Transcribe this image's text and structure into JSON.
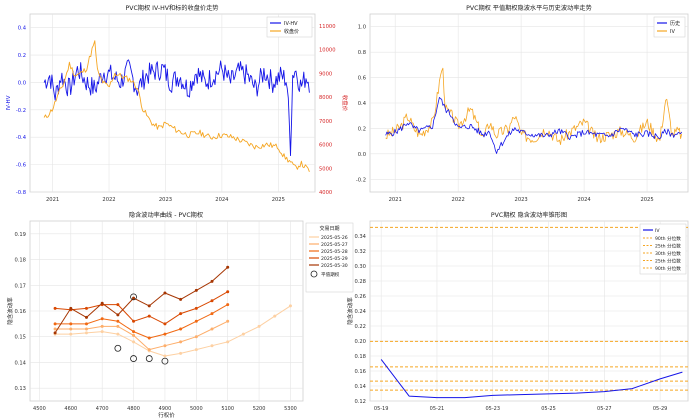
{
  "chart_data": [
    {
      "type": "line",
      "title": "PVC期权 IV-HV和标的收盘价走势",
      "xlabel": "",
      "ylabel": "IV-HV",
      "y2label": "收盘价",
      "x_ticks": [
        "2021",
        "2022",
        "2023",
        "2024",
        "2025"
      ],
      "y_ticks": [
        "0.4",
        "0.2",
        "0.0",
        "-0.2",
        "-0.4",
        "-0.6",
        "-0.8"
      ],
      "y2_ticks": [
        "11000",
        "10000",
        "9000",
        "8000",
        "7000",
        "6000",
        "5000",
        "4000"
      ],
      "ylim": [
        -0.8,
        0.5
      ],
      "y2lim": [
        4000,
        11500
      ],
      "xlim": [
        2020.6,
        2025.65
      ],
      "legend": "top-right",
      "series": [
        {
          "name": "IV-HV",
          "color": "#1515e8",
          "axis": "left",
          "x": [
            2020.85,
            2020.95,
            2021.05,
            2021.15,
            2021.3,
            2021.45,
            2021.6,
            2021.75,
            2021.9,
            2022.05,
            2022.2,
            2022.35,
            2022.5,
            2022.65,
            2022.8,
            2022.95,
            2023.1,
            2023.25,
            2023.4,
            2023.55,
            2023.7,
            2023.85,
            2024.0,
            2024.15,
            2024.3,
            2024.45,
            2024.6,
            2024.75,
            2024.9,
            2025.05,
            2025.15,
            2025.22,
            2025.25,
            2025.3,
            2025.4,
            2025.5,
            2025.55
          ],
          "values": [
            0.0,
            0.05,
            -0.1,
            0.05,
            -0.05,
            0.1,
            0.0,
            -0.05,
            0.08,
            0.05,
            0.0,
            0.1,
            -0.05,
            0.05,
            0.08,
            0.1,
            0.0,
            0.05,
            -0.05,
            0.08,
            0.0,
            0.05,
            0.1,
            0.0,
            0.08,
            0.05,
            -0.05,
            0.08,
            0.0,
            0.05,
            0.02,
            -0.5,
            0.05,
            0.1,
            -0.03,
            0.05,
            0.0
          ]
        },
        {
          "name": "收盘价",
          "color": "#f5a623",
          "axis": "right",
          "x": [
            2020.85,
            2020.9,
            2021.0,
            2021.1,
            2021.2,
            2021.3,
            2021.4,
            2021.5,
            2021.6,
            2021.7,
            2021.75,
            2021.8,
            2021.9,
            2022.0,
            2022.1,
            2022.2,
            2022.3,
            2022.4,
            2022.5,
            2022.6,
            2022.7,
            2022.8,
            2022.9,
            2023.0,
            2023.2,
            2023.4,
            2023.6,
            2023.8,
            2024.0,
            2024.2,
            2024.4,
            2024.6,
            2024.8,
            2025.0,
            2025.1,
            2025.2,
            2025.3,
            2025.4,
            2025.5,
            2025.55
          ],
          "values": [
            7100,
            7200,
            7500,
            8100,
            8600,
            9400,
            8900,
            9000,
            9200,
            10000,
            10300,
            9000,
            8600,
            8400,
            9000,
            8900,
            8800,
            8700,
            8400,
            7500,
            7100,
            6800,
            6700,
            6900,
            6600,
            6400,
            6500,
            6300,
            6400,
            6300,
            6100,
            5900,
            6000,
            5900,
            5500,
            5300,
            5000,
            5200,
            5000,
            4900
          ]
        }
      ]
    },
    {
      "type": "line",
      "title": "PVC期权 平值期权隐波水平与历史波动率走势",
      "xlabel": "",
      "ylabel": "",
      "x_ticks": [
        "2021",
        "2022",
        "2023",
        "2024",
        "2025"
      ],
      "y_ticks": [
        "1.0",
        "0.8",
        "0.6",
        "0.4",
        "0.2",
        "0.0",
        "-0.2"
      ],
      "ylim": [
        -0.3,
        1.1
      ],
      "xlim": [
        2020.6,
        2025.65
      ],
      "legend": "top-right",
      "series": [
        {
          "name": "历史",
          "color": "#1515e8",
          "x": [
            2020.85,
            2021.0,
            2021.1,
            2021.2,
            2021.3,
            2021.4,
            2021.5,
            2021.6,
            2021.7,
            2021.8,
            2021.9,
            2022.0,
            2022.2,
            2022.4,
            2022.5,
            2022.6,
            2022.8,
            2022.9,
            2023.0,
            2023.2,
            2023.4,
            2023.6,
            2023.8,
            2024.0,
            2024.2,
            2024.4,
            2024.6,
            2024.8,
            2025.0,
            2025.2,
            2025.3,
            2025.4,
            2025.5,
            2025.55
          ],
          "values": [
            0.15,
            0.17,
            0.2,
            0.25,
            0.2,
            0.18,
            0.2,
            0.22,
            0.45,
            0.35,
            0.3,
            0.2,
            0.22,
            0.15,
            0.18,
            0.02,
            0.15,
            0.2,
            0.17,
            0.15,
            0.14,
            0.18,
            0.13,
            0.17,
            0.15,
            0.14,
            0.2,
            0.15,
            0.16,
            0.13,
            0.18,
            0.15,
            0.16,
            0.15
          ]
        },
        {
          "name": "IV",
          "color": "#f5a623",
          "x": [
            2020.85,
            2021.0,
            2021.1,
            2021.2,
            2021.3,
            2021.4,
            2021.5,
            2021.6,
            2021.7,
            2021.75,
            2021.8,
            2021.9,
            2022.0,
            2022.2,
            2022.4,
            2022.5,
            2022.6,
            2022.8,
            2022.9,
            2023.0,
            2023.2,
            2023.4,
            2023.6,
            2023.8,
            2024.0,
            2024.2,
            2024.4,
            2024.6,
            2024.8,
            2025.0,
            2025.2,
            2025.3,
            2025.4,
            2025.5,
            2025.55
          ],
          "values": [
            0.14,
            0.18,
            0.22,
            0.3,
            0.2,
            0.15,
            0.2,
            0.25,
            0.55,
            0.7,
            0.35,
            0.3,
            0.22,
            0.35,
            0.12,
            0.25,
            0.15,
            0.2,
            0.3,
            0.15,
            0.12,
            0.2,
            0.1,
            0.18,
            0.25,
            0.12,
            0.15,
            0.18,
            0.13,
            0.25,
            0.1,
            0.45,
            0.15,
            0.18,
            0.14
          ]
        }
      ]
    },
    {
      "type": "line",
      "title": "隐含波动率曲线 - PVC期权",
      "xlabel": "行权价",
      "ylabel": "隐含波动率",
      "x_ticks": [
        "4500",
        "4600",
        "4700",
        "4800",
        "4900",
        "5000",
        "5100",
        "5200",
        "5300"
      ],
      "y_ticks": [
        "0.19",
        "0.18",
        "0.17",
        "0.16",
        "0.15",
        "0.14",
        "0.13"
      ],
      "xlim": [
        4470,
        5340
      ],
      "ylim": [
        0.125,
        0.195
      ],
      "legend_title": "交易日期",
      "legend": "right",
      "series": [
        {
          "name": "2025-05-26",
          "color": "#fdd0a2",
          "x": [
            4550,
            4600,
            4650,
            4700,
            4750,
            4800,
            4850,
            4900,
            4950,
            5000,
            5050,
            5100,
            5150,
            5200,
            5250,
            5300
          ],
          "values": [
            0.151,
            0.151,
            0.1515,
            0.152,
            0.151,
            0.148,
            0.1445,
            0.1425,
            0.1435,
            0.145,
            0.1465,
            0.148,
            0.151,
            0.154,
            0.158,
            0.162
          ]
        },
        {
          "name": "2025-05-27",
          "color": "#fdae6b",
          "x": [
            4550,
            4600,
            4650,
            4700,
            4750,
            4800,
            4850,
            4900,
            4950,
            5000,
            5050,
            5100
          ],
          "values": [
            0.153,
            0.153,
            0.153,
            0.154,
            0.154,
            0.1505,
            0.145,
            0.1465,
            0.148,
            0.15,
            0.153,
            0.156
          ]
        },
        {
          "name": "2025-05-28",
          "color": "#f16913",
          "x": [
            4550,
            4600,
            4650,
            4700,
            4750,
            4800,
            4850,
            4900,
            4950,
            5000,
            5050,
            5100
          ],
          "values": [
            0.155,
            0.155,
            0.155,
            0.157,
            0.156,
            0.152,
            0.1495,
            0.151,
            0.153,
            0.156,
            0.159,
            0.1625
          ]
        },
        {
          "name": "2025-05-29",
          "color": "#d94801",
          "x": [
            4550,
            4600,
            4650,
            4700,
            4750,
            4800,
            4850,
            4900,
            4950,
            5000,
            5050,
            5100
          ],
          "values": [
            0.161,
            0.1605,
            0.161,
            0.1625,
            0.1625,
            0.156,
            0.158,
            0.155,
            0.159,
            0.161,
            0.164,
            0.1675
          ]
        },
        {
          "name": "2025-05-30",
          "color": "#a63603",
          "x": [
            4550,
            4600,
            4650,
            4700,
            4750,
            4800,
            4850,
            4900,
            4950,
            5000,
            5050,
            5100
          ],
          "values": [
            0.1515,
            0.161,
            0.1575,
            0.163,
            0.1585,
            0.165,
            0.162,
            0.167,
            0.1645,
            0.168,
            0.1715,
            0.177
          ]
        }
      ],
      "atm_label": "平值期权",
      "atm_points": {
        "x": [
          4750,
          4800,
          4800,
          4850,
          4900
        ],
        "values": [
          0.1455,
          0.1655,
          0.1415,
          0.1415,
          0.1405
        ]
      }
    },
    {
      "type": "line",
      "title": "PVC期权 隐含波动率锥形图",
      "xlabel": "",
      "ylabel": "隐含波动率",
      "x_ticks": [
        "05-19",
        "05-21",
        "05-23",
        "05-25",
        "05-27",
        "05-29"
      ],
      "y_ticks": [
        "0.34",
        "0.32",
        "0.30",
        "0.28",
        "0.26",
        "0.24",
        "0.22",
        "0.20",
        "0.18",
        "0.16",
        "0.14",
        "0.12"
      ],
      "xlim": [
        18.6,
        30.0
      ],
      "ylim": [
        0.12,
        0.36
      ],
      "legend": "top-right",
      "series": [
        {
          "name": "IV",
          "color": "#1515e8",
          "x": [
            19,
            20,
            21,
            22,
            23,
            24,
            25,
            26,
            27,
            28,
            29,
            29.8
          ],
          "values": [
            0.1755,
            0.1265,
            0.1245,
            0.1245,
            0.1275,
            0.1285,
            0.1295,
            0.1305,
            0.1325,
            0.1365,
            0.1495,
            0.1585
          ]
        }
      ],
      "percentile_lines": [
        {
          "name": "90th 分位数",
          "value": 0.3515,
          "color": "#f5a623"
        },
        {
          "name": "25th 分位数",
          "value": 0.1995,
          "color": "#f5a623"
        },
        {
          "name": "30th 分位数",
          "value": 0.1655,
          "color": "#f5a623"
        },
        {
          "name": "25th 分位数",
          "value": 0.1465,
          "color": "#f5a623"
        },
        {
          "name": "90th 分位数",
          "value": 0.1345,
          "color": "#f5a623"
        }
      ]
    }
  ]
}
